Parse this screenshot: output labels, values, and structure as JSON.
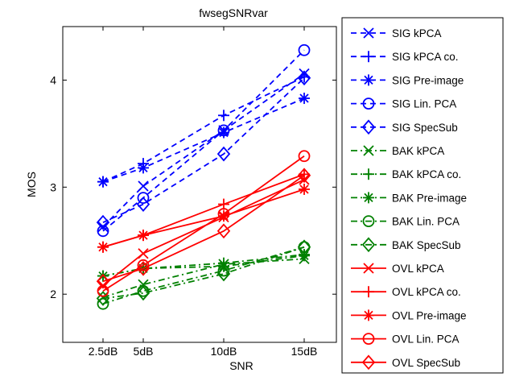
{
  "chart_data": {
    "type": "line",
    "title": "fwsegSNRvar",
    "xlabel": "SNR",
    "ylabel": "MOS",
    "x": [
      2.5,
      5,
      10,
      15
    ],
    "x_tick_labels": [
      "2.5dB",
      "5dB",
      "10dB",
      "15dB"
    ],
    "xlim": [
      0,
      17
    ],
    "ylim": [
      1.55,
      4.5
    ],
    "y_ticks": [
      2,
      3,
      4
    ],
    "grid": false,
    "legend_position": "right-outside",
    "colors": {
      "SIG": "#0000ff",
      "BAK": "#008000",
      "OVL": "#ff0000"
    },
    "series": [
      {
        "name": "SIG kPCA",
        "group": "SIG",
        "marker": "x",
        "dash": "dashed",
        "values": [
          2.63,
          3.01,
          3.53,
          4.06
        ]
      },
      {
        "name": "SIG kPCA co.",
        "group": "SIG",
        "marker": "plus",
        "dash": "dashed",
        "values": [
          3.05,
          3.22,
          3.67,
          4.03
        ]
      },
      {
        "name": "SIG Pre-image",
        "group": "SIG",
        "marker": "star",
        "dash": "dashed",
        "values": [
          3.05,
          3.18,
          3.51,
          3.83
        ]
      },
      {
        "name": "SIG Lin. PCA",
        "group": "SIG",
        "marker": "circle",
        "dash": "dashed",
        "values": [
          2.59,
          2.9,
          3.53,
          4.28
        ]
      },
      {
        "name": "SIG SpecSub",
        "group": "SIG",
        "marker": "diamond",
        "dash": "dashed",
        "values": [
          2.67,
          2.84,
          3.31,
          4.02
        ]
      },
      {
        "name": "BAK kPCA",
        "group": "BAK",
        "marker": "x",
        "dash": "dashdot",
        "values": [
          1.97,
          2.09,
          2.28,
          2.33
        ]
      },
      {
        "name": "BAK kPCA co.",
        "group": "BAK",
        "marker": "plus",
        "dash": "dashdot",
        "values": [
          2.17,
          2.24,
          2.29,
          2.37
        ]
      },
      {
        "name": "BAK Pre-image",
        "group": "BAK",
        "marker": "star",
        "dash": "dashdot",
        "values": [
          2.17,
          2.24,
          2.26,
          2.36
        ]
      },
      {
        "name": "BAK Lin. PCA",
        "group": "BAK",
        "marker": "circle",
        "dash": "dashdot",
        "values": [
          1.91,
          2.03,
          2.22,
          2.44
        ]
      },
      {
        "name": "BAK SpecSub",
        "group": "BAK",
        "marker": "diamond",
        "dash": "dashdot",
        "values": [
          1.96,
          2.01,
          2.19,
          2.44
        ]
      },
      {
        "name": "OVL kPCA",
        "group": "OVL",
        "marker": "x",
        "dash": "solid",
        "values": [
          2.08,
          2.38,
          2.72,
          3.07
        ]
      },
      {
        "name": "OVL kPCA co.",
        "group": "OVL",
        "marker": "plus",
        "dash": "solid",
        "values": [
          2.44,
          2.55,
          2.84,
          3.12
        ]
      },
      {
        "name": "OVL Pre-image",
        "group": "OVL",
        "marker": "star",
        "dash": "solid",
        "values": [
          2.44,
          2.55,
          2.73,
          2.98
        ]
      },
      {
        "name": "OVL Lin. PCA",
        "group": "OVL",
        "marker": "circle",
        "dash": "solid",
        "values": [
          2.03,
          2.27,
          2.75,
          3.29
        ]
      },
      {
        "name": "OVL SpecSub",
        "group": "OVL",
        "marker": "diamond",
        "dash": "solid",
        "values": [
          2.12,
          2.24,
          2.59,
          3.11
        ]
      }
    ]
  }
}
